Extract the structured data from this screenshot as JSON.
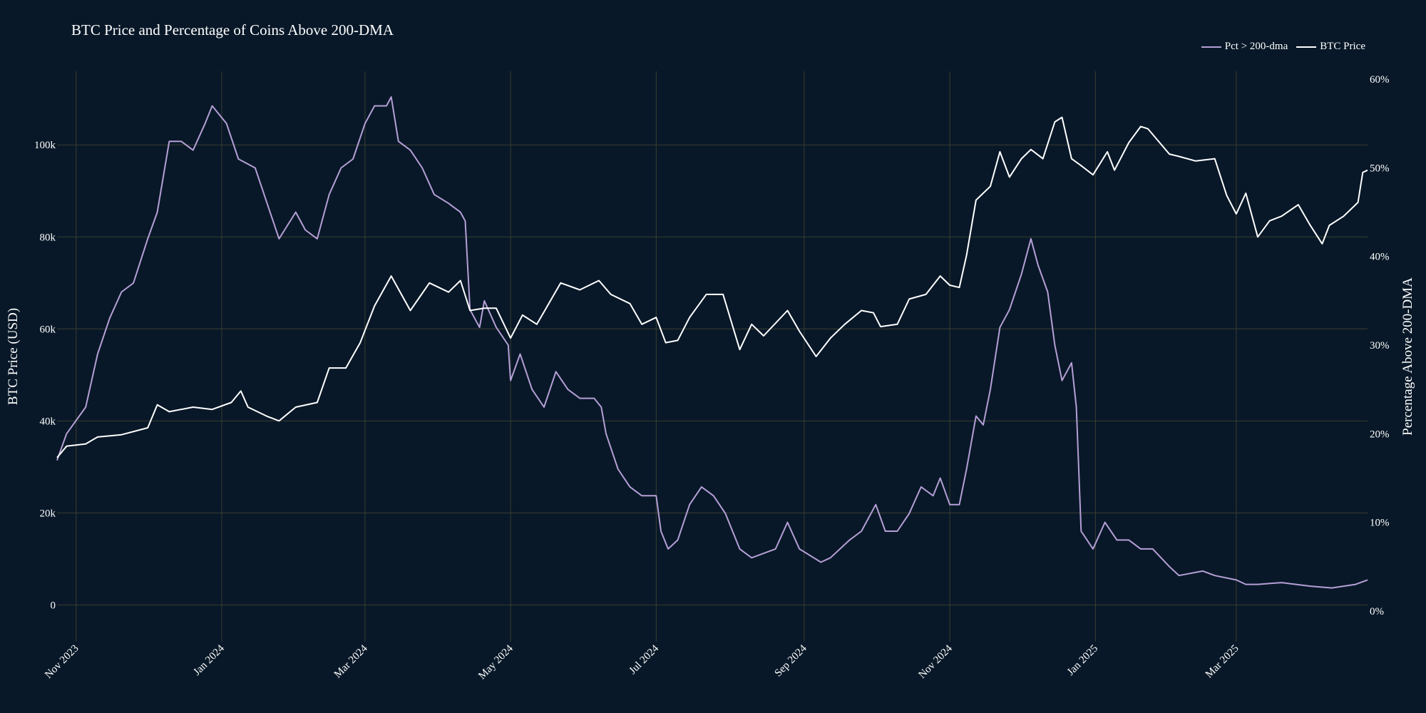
{
  "colors": {
    "background": "#081828",
    "grid": "#3a3e30",
    "btc": "#ffffff",
    "pct": "#b59fd6",
    "text": "#ffffff"
  },
  "chart_data": {
    "type": "line",
    "title": "BTC Price and Percentage of Coins Above 200-DMA",
    "x_range": [
      "2023-10-24",
      "2025-04-25"
    ],
    "y_left": {
      "label": "BTC Price (USD)",
      "range": [
        -8000,
        116000
      ],
      "ticks": [
        0,
        20000,
        40000,
        60000,
        80000,
        100000
      ],
      "tick_labels": [
        "0",
        "20k",
        "40k",
        "60k",
        "80k",
        "100k"
      ]
    },
    "y_right": {
      "label": "Percentage Above 200-DMA",
      "range": [
        -3.47,
        60.9
      ],
      "ticks": [
        0,
        10,
        20,
        30,
        40,
        50,
        60
      ],
      "tick_labels": [
        "0%",
        "10%",
        "20%",
        "30%",
        "40%",
        "50%",
        "60%"
      ]
    },
    "x_ticks": [
      {
        "date": "2023-11-01",
        "label": "Nov 2023"
      },
      {
        "date": "2024-01-01",
        "label": "Jan 2024"
      },
      {
        "date": "2024-03-01",
        "label": "Mar 2024"
      },
      {
        "date": "2024-05-01",
        "label": "May 2024"
      },
      {
        "date": "2024-07-01",
        "label": "Jul 2024"
      },
      {
        "date": "2024-09-01",
        "label": "Sep 2024"
      },
      {
        "date": "2024-11-01",
        "label": "Nov 2024"
      },
      {
        "date": "2025-01-01",
        "label": "Jan 2025"
      },
      {
        "date": "2025-03-01",
        "label": "Mar 2025"
      }
    ],
    "legend": [
      {
        "name": "Pct > 200-dma",
        "series": "pct"
      },
      {
        "name": "BTC Price",
        "series": "btc"
      }
    ],
    "legend_position": "top-right",
    "series": [
      {
        "name": "BTC Price",
        "axis": "left",
        "points": [
          [
            "2023-10-24",
            32000
          ],
          [
            "2023-10-28",
            34500
          ],
          [
            "2023-11-05",
            35000
          ],
          [
            "2023-11-10",
            36500
          ],
          [
            "2023-11-20",
            37000
          ],
          [
            "2023-12-01",
            38500
          ],
          [
            "2023-12-05",
            43500
          ],
          [
            "2023-12-10",
            42000
          ],
          [
            "2023-12-20",
            43000
          ],
          [
            "2023-12-28",
            42500
          ],
          [
            "2024-01-05",
            44000
          ],
          [
            "2024-01-09",
            46500
          ],
          [
            "2024-01-12",
            43000
          ],
          [
            "2024-01-20",
            41000
          ],
          [
            "2024-01-25",
            40000
          ],
          [
            "2024-02-01",
            43000
          ],
          [
            "2024-02-10",
            44000
          ],
          [
            "2024-02-15",
            51500
          ],
          [
            "2024-02-22",
            51500
          ],
          [
            "2024-02-28",
            57000
          ],
          [
            "2024-03-05",
            65000
          ],
          [
            "2024-03-12",
            71500
          ],
          [
            "2024-03-20",
            64000
          ],
          [
            "2024-03-28",
            70000
          ],
          [
            "2024-04-05",
            68000
          ],
          [
            "2024-04-10",
            70500
          ],
          [
            "2024-04-14",
            64000
          ],
          [
            "2024-04-20",
            64500
          ],
          [
            "2024-04-25",
            64500
          ],
          [
            "2024-05-01",
            58000
          ],
          [
            "2024-05-06",
            63000
          ],
          [
            "2024-05-12",
            61000
          ],
          [
            "2024-05-17",
            65500
          ],
          [
            "2024-05-22",
            70000
          ],
          [
            "2024-05-30",
            68500
          ],
          [
            "2024-06-07",
            70500
          ],
          [
            "2024-06-12",
            67500
          ],
          [
            "2024-06-20",
            65500
          ],
          [
            "2024-06-25",
            61000
          ],
          [
            "2024-07-01",
            62500
          ],
          [
            "2024-07-05",
            57000
          ],
          [
            "2024-07-10",
            57500
          ],
          [
            "2024-07-15",
            62500
          ],
          [
            "2024-07-22",
            67500
          ],
          [
            "2024-07-29",
            67500
          ],
          [
            "2024-08-05",
            55500
          ],
          [
            "2024-08-10",
            61000
          ],
          [
            "2024-08-15",
            58500
          ],
          [
            "2024-08-25",
            64000
          ],
          [
            "2024-08-30",
            59500
          ],
          [
            "2024-09-06",
            54000
          ],
          [
            "2024-09-12",
            58000
          ],
          [
            "2024-09-18",
            61000
          ],
          [
            "2024-09-25",
            64000
          ],
          [
            "2024-09-30",
            63500
          ],
          [
            "2024-10-03",
            60500
          ],
          [
            "2024-10-10",
            61000
          ],
          [
            "2024-10-15",
            66500
          ],
          [
            "2024-10-22",
            67500
          ],
          [
            "2024-10-28",
            71500
          ],
          [
            "2024-11-01",
            69500
          ],
          [
            "2024-11-05",
            69000
          ],
          [
            "2024-11-08",
            76000
          ],
          [
            "2024-11-12",
            88000
          ],
          [
            "2024-11-18",
            91000
          ],
          [
            "2024-11-22",
            98500
          ],
          [
            "2024-11-26",
            93000
          ],
          [
            "2024-12-01",
            97000
          ],
          [
            "2024-12-05",
            99000
          ],
          [
            "2024-12-10",
            97000
          ],
          [
            "2024-12-15",
            105000
          ],
          [
            "2024-12-18",
            106000
          ],
          [
            "2024-12-22",
            97000
          ],
          [
            "2024-12-26",
            95500
          ],
          [
            "2024-12-31",
            93500
          ],
          [
            "2025-01-06",
            98500
          ],
          [
            "2025-01-09",
            94500
          ],
          [
            "2025-01-15",
            100500
          ],
          [
            "2025-01-20",
            104000
          ],
          [
            "2025-01-23",
            103500
          ],
          [
            "2025-02-01",
            98000
          ],
          [
            "2025-02-05",
            97500
          ],
          [
            "2025-02-12",
            96500
          ],
          [
            "2025-02-20",
            97000
          ],
          [
            "2025-02-25",
            89000
          ],
          [
            "2025-03-01",
            85000
          ],
          [
            "2025-03-05",
            89500
          ],
          [
            "2025-03-10",
            80000
          ],
          [
            "2025-03-15",
            83500
          ],
          [
            "2025-03-20",
            84500
          ],
          [
            "2025-03-27",
            87000
          ],
          [
            "2025-04-01",
            82500
          ],
          [
            "2025-04-06",
            78500
          ],
          [
            "2025-04-09",
            82500
          ],
          [
            "2025-04-15",
            84500
          ],
          [
            "2025-04-21",
            87500
          ],
          [
            "2025-04-23",
            94000
          ],
          [
            "2025-04-25",
            94500
          ]
        ]
      },
      {
        "name": "Pct > 200-dma",
        "axis": "right",
        "points": [
          [
            "2023-10-24",
            17
          ],
          [
            "2023-10-28",
            20
          ],
          [
            "2023-11-05",
            23
          ],
          [
            "2023-11-10",
            29
          ],
          [
            "2023-11-15",
            33
          ],
          [
            "2023-11-20",
            36
          ],
          [
            "2023-11-25",
            37
          ],
          [
            "2023-12-01",
            42
          ],
          [
            "2023-12-05",
            45
          ],
          [
            "2023-12-10",
            53
          ],
          [
            "2023-12-15",
            53
          ],
          [
            "2023-12-20",
            52
          ],
          [
            "2023-12-25",
            55
          ],
          [
            "2023-12-28",
            57
          ],
          [
            "2024-01-03",
            55
          ],
          [
            "2024-01-08",
            51
          ],
          [
            "2024-01-15",
            50
          ],
          [
            "2024-01-20",
            46
          ],
          [
            "2024-01-25",
            42
          ],
          [
            "2024-02-01",
            45
          ],
          [
            "2024-02-05",
            43
          ],
          [
            "2024-02-10",
            42
          ],
          [
            "2024-02-15",
            47
          ],
          [
            "2024-02-20",
            50
          ],
          [
            "2024-02-25",
            51
          ],
          [
            "2024-03-01",
            55
          ],
          [
            "2024-03-05",
            57
          ],
          [
            "2024-03-10",
            57
          ],
          [
            "2024-03-12",
            58
          ],
          [
            "2024-03-15",
            53
          ],
          [
            "2024-03-20",
            52
          ],
          [
            "2024-03-25",
            50
          ],
          [
            "2024-03-30",
            47
          ],
          [
            "2024-04-05",
            46
          ],
          [
            "2024-04-10",
            45
          ],
          [
            "2024-04-12",
            44
          ],
          [
            "2024-04-14",
            34
          ],
          [
            "2024-04-18",
            32
          ],
          [
            "2024-04-20",
            35
          ],
          [
            "2024-04-25",
            32
          ],
          [
            "2024-04-30",
            30
          ],
          [
            "2024-05-01",
            26
          ],
          [
            "2024-05-05",
            29
          ],
          [
            "2024-05-10",
            25
          ],
          [
            "2024-05-15",
            23
          ],
          [
            "2024-05-20",
            27
          ],
          [
            "2024-05-25",
            25
          ],
          [
            "2024-05-30",
            24
          ],
          [
            "2024-06-05",
            24
          ],
          [
            "2024-06-08",
            23
          ],
          [
            "2024-06-10",
            20
          ],
          [
            "2024-06-15",
            16
          ],
          [
            "2024-06-20",
            14
          ],
          [
            "2024-06-25",
            13
          ],
          [
            "2024-07-01",
            13
          ],
          [
            "2024-07-03",
            9
          ],
          [
            "2024-07-06",
            7
          ],
          [
            "2024-07-10",
            8
          ],
          [
            "2024-07-15",
            12
          ],
          [
            "2024-07-20",
            14
          ],
          [
            "2024-07-25",
            13
          ],
          [
            "2024-07-30",
            11
          ],
          [
            "2024-08-05",
            7
          ],
          [
            "2024-08-10",
            6
          ],
          [
            "2024-08-15",
            6.5
          ],
          [
            "2024-08-20",
            7
          ],
          [
            "2024-08-25",
            10
          ],
          [
            "2024-08-30",
            7
          ],
          [
            "2024-09-05",
            6
          ],
          [
            "2024-09-08",
            5.5
          ],
          [
            "2024-09-12",
            6
          ],
          [
            "2024-09-20",
            8
          ],
          [
            "2024-09-25",
            9
          ],
          [
            "2024-10-01",
            12
          ],
          [
            "2024-10-05",
            9
          ],
          [
            "2024-10-10",
            9
          ],
          [
            "2024-10-15",
            11
          ],
          [
            "2024-10-20",
            14
          ],
          [
            "2024-10-25",
            13
          ],
          [
            "2024-10-28",
            15
          ],
          [
            "2024-11-01",
            12
          ],
          [
            "2024-11-05",
            12
          ],
          [
            "2024-11-08",
            16
          ],
          [
            "2024-11-12",
            22
          ],
          [
            "2024-11-15",
            21
          ],
          [
            "2024-11-18",
            25
          ],
          [
            "2024-11-22",
            32
          ],
          [
            "2024-11-26",
            34
          ],
          [
            "2024-12-01",
            38
          ],
          [
            "2024-12-05",
            42
          ],
          [
            "2024-12-08",
            39
          ],
          [
            "2024-12-12",
            36
          ],
          [
            "2024-12-15",
            30
          ],
          [
            "2024-12-18",
            26
          ],
          [
            "2024-12-22",
            28
          ],
          [
            "2024-12-24",
            23
          ],
          [
            "2024-12-26",
            9
          ],
          [
            "2024-12-31",
            7
          ],
          [
            "2025-01-05",
            10
          ],
          [
            "2025-01-10",
            8
          ],
          [
            "2025-01-15",
            8
          ],
          [
            "2025-01-20",
            7
          ],
          [
            "2025-01-25",
            7
          ],
          [
            "2025-02-01",
            5
          ],
          [
            "2025-02-05",
            4
          ],
          [
            "2025-02-15",
            4.5
          ],
          [
            "2025-02-20",
            4
          ],
          [
            "2025-03-01",
            3.5
          ],
          [
            "2025-03-05",
            3
          ],
          [
            "2025-03-10",
            3
          ],
          [
            "2025-03-20",
            3.2
          ],
          [
            "2025-04-01",
            2.8
          ],
          [
            "2025-04-10",
            2.6
          ],
          [
            "2025-04-20",
            3.0
          ],
          [
            "2025-04-25",
            3.5
          ]
        ]
      }
    ]
  }
}
